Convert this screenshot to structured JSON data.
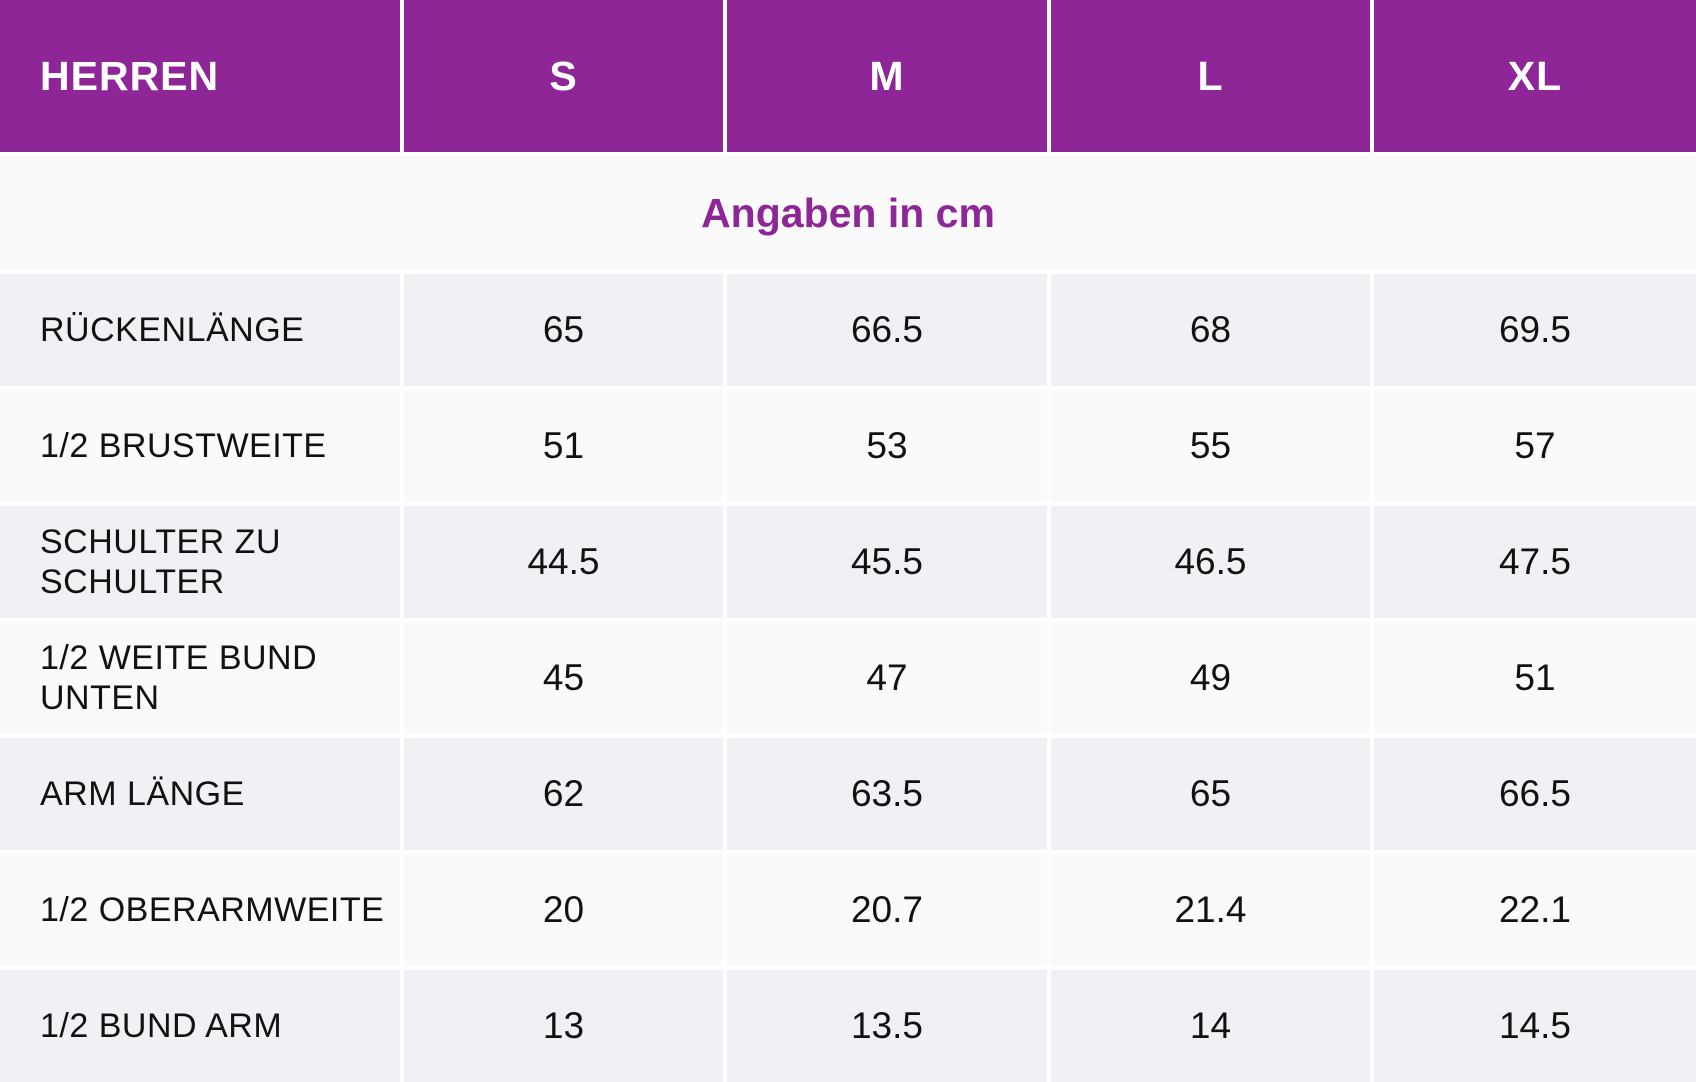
{
  "table": {
    "header": {
      "label": "HERREN",
      "sizes": [
        "S",
        "M",
        "L",
        "XL"
      ]
    },
    "unit_note": "Angaben in cm",
    "rows": [
      {
        "label": "RÜCKENLÄNGE",
        "values": [
          "65",
          "66.5",
          "68",
          "69.5"
        ]
      },
      {
        "label": "1/2 BRUSTWEITE",
        "values": [
          "51",
          "53",
          "55",
          "57"
        ]
      },
      {
        "label": "SCHULTER ZU SCHULTER",
        "values": [
          "44.5",
          "45.5",
          "46.5",
          "47.5"
        ]
      },
      {
        "label": "1/2 WEITE BUND UNTEN",
        "values": [
          "45",
          "47",
          "49",
          "51"
        ]
      },
      {
        "label": "ARM LÄNGE",
        "values": [
          "62",
          "63.5",
          "65",
          "66.5"
        ]
      },
      {
        "label": "1/2 OBERARMWEITE",
        "values": [
          "20",
          "20.7",
          "21.4",
          "22.1"
        ]
      },
      {
        "label": "1/2 BUND ARM",
        "values": [
          "13",
          "13.5",
          "14",
          "14.5"
        ]
      }
    ],
    "colors": {
      "header_background": "#8e2698",
      "header_text": "#ffffff",
      "unit_text": "#8e2698",
      "row_alt_background": "#f0f1f5",
      "row_plain_background": "#fafafa"
    }
  }
}
